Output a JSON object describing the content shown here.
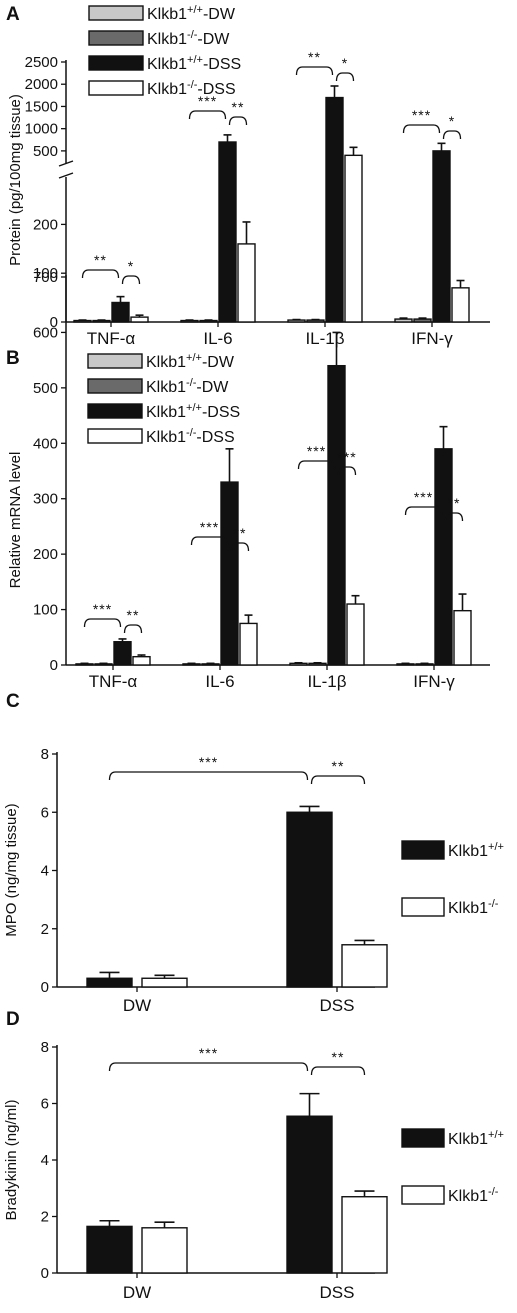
{
  "panels": {
    "A": {
      "letter": "A"
    },
    "B": {
      "letter": "B"
    },
    "C": {
      "letter": "C"
    },
    "D": {
      "letter": "D"
    }
  },
  "colors": {
    "Klkb1+/+-DW": "#c8c8c8",
    "Klkb1-/--DW": "#6a6a6a",
    "Klkb1+/+-DSS": "#111111",
    "Klkb1-/--DSS": "#ffffff"
  },
  "chart_data": [
    {
      "id": "A",
      "type": "bar",
      "ylabel": "Protein (pg/100mg tissue)",
      "categories": [
        "TNF-α",
        "IL-6",
        "IL-1β",
        "IFN-γ"
      ],
      "y_axis_break": true,
      "ylim_lower": [
        0,
        250
      ],
      "ylim_upper": [
        250,
        2500
      ],
      "yticks_lower": [
        0,
        100,
        200
      ],
      "yticks_upper": [
        500,
        1000,
        1500,
        2000,
        2500
      ],
      "legend": [
        {
          "text": "Klkb1",
          "sup": "+/+",
          "suffix": "-DW"
        },
        {
          "text": "Klkb1",
          "sup": "-/-",
          "suffix": "-DW"
        },
        {
          "text": "Klkb1",
          "sup": "+/+",
          "suffix": "-DSS"
        },
        {
          "text": "Klkb1",
          "sup": "-/-",
          "suffix": "-DSS"
        }
      ],
      "series": [
        {
          "name": "Klkb1+/+-DW",
          "values": [
            3,
            3,
            4,
            6
          ],
          "errors": [
            1,
            1,
            1,
            2
          ]
        },
        {
          "name": "Klkb1-/--DW",
          "values": [
            3,
            3,
            4,
            6
          ],
          "errors": [
            1,
            1,
            1,
            2
          ]
        },
        {
          "name": "Klkb1+/+-DSS",
          "values": [
            40,
            700,
            1700,
            500
          ],
          "errors": [
            12,
            160,
            260,
            170
          ]
        },
        {
          "name": "Klkb1-/--DSS",
          "values": [
            10,
            160,
            400,
            70
          ],
          "errors": [
            4,
            45,
            180,
            15
          ]
        }
      ],
      "significance": [
        {
          "label": "**",
          "from": [
            0,
            0
          ],
          "to": [
            0,
            2
          ]
        },
        {
          "label": "*",
          "from": [
            0,
            2
          ],
          "to": [
            0,
            3
          ]
        },
        {
          "label": "***",
          "from": [
            1,
            0
          ],
          "to": [
            1,
            2
          ]
        },
        {
          "label": "**",
          "from": [
            1,
            2
          ],
          "to": [
            1,
            3
          ]
        },
        {
          "label": "**",
          "from": [
            2,
            0
          ],
          "to": [
            2,
            2
          ]
        },
        {
          "label": "*",
          "from": [
            2,
            2
          ],
          "to": [
            2,
            3
          ]
        },
        {
          "label": "***",
          "from": [
            3,
            0
          ],
          "to": [
            3,
            2
          ]
        },
        {
          "label": "*",
          "from": [
            3,
            2
          ],
          "to": [
            3,
            3
          ]
        }
      ]
    },
    {
      "id": "B",
      "type": "bar",
      "ylabel": "Relative mRNA level",
      "categories": [
        "TNF-α",
        "IL-6",
        "IL-1β",
        "IFN-γ"
      ],
      "ylim": [
        0,
        700
      ],
      "yticks": [
        0,
        100,
        200,
        300,
        400,
        500,
        600,
        700
      ],
      "legend": [
        {
          "text": "Klkb1",
          "sup": "+/+",
          "suffix": "-DW"
        },
        {
          "text": "Klkb1",
          "sup": "-/-",
          "suffix": "-DW"
        },
        {
          "text": "Klkb1",
          "sup": "+/+",
          "suffix": "-DSS"
        },
        {
          "text": "Klkb1",
          "sup": "-/-",
          "suffix": "-DSS"
        }
      ],
      "series": [
        {
          "name": "Klkb1+/+-DW",
          "values": [
            2,
            2,
            3,
            2
          ],
          "errors": [
            1,
            1,
            1,
            1
          ]
        },
        {
          "name": "Klkb1-/--DW",
          "values": [
            2,
            2,
            3,
            2
          ],
          "errors": [
            1,
            1,
            1,
            1
          ]
        },
        {
          "name": "Klkb1+/+-DSS",
          "values": [
            42,
            330,
            540,
            390
          ],
          "errors": [
            5,
            60,
            60,
            40
          ]
        },
        {
          "name": "Klkb1-/--DSS",
          "values": [
            15,
            75,
            110,
            98
          ],
          "errors": [
            3,
            15,
            15,
            30
          ]
        }
      ],
      "significance": [
        {
          "label": "***",
          "from": [
            0,
            0
          ],
          "to": [
            0,
            2
          ]
        },
        {
          "label": "**",
          "from": [
            0,
            2
          ],
          "to": [
            0,
            3
          ]
        },
        {
          "label": "***",
          "from": [
            1,
            0
          ],
          "to": [
            1,
            2
          ]
        },
        {
          "label": "**",
          "from": [
            1,
            2
          ],
          "to": [
            1,
            3
          ]
        },
        {
          "label": "***",
          "from": [
            2,
            0
          ],
          "to": [
            2,
            2
          ]
        },
        {
          "label": "***",
          "from": [
            2,
            2
          ],
          "to": [
            2,
            3
          ]
        },
        {
          "label": "***",
          "from": [
            3,
            0
          ],
          "to": [
            3,
            2
          ]
        },
        {
          "label": "**",
          "from": [
            3,
            2
          ],
          "to": [
            3,
            3
          ]
        }
      ]
    },
    {
      "id": "C",
      "type": "bar",
      "ylabel": "MPO (ng/mg tissue)",
      "categories": [
        "DW",
        "DSS"
      ],
      "ylim": [
        0,
        8
      ],
      "yticks": [
        0,
        2,
        4,
        6,
        8
      ],
      "legend": [
        {
          "text": "Klkb1",
          "sup": "+/+",
          "suffix": ""
        },
        {
          "text": "Klkb1",
          "sup": "-/-",
          "suffix": ""
        }
      ],
      "series": [
        {
          "name": "Klkb1+/+",
          "values": [
            0.3,
            6.0
          ],
          "errors": [
            0.2,
            0.2
          ]
        },
        {
          "name": "Klkb1-/-",
          "values": [
            0.3,
            1.45
          ],
          "errors": [
            0.1,
            0.15
          ]
        }
      ],
      "significance": [
        {
          "label": "***",
          "from": [
            0,
            0
          ],
          "to": [
            1,
            0
          ]
        },
        {
          "label": "**",
          "from": [
            1,
            0
          ],
          "to": [
            1,
            1
          ]
        }
      ]
    },
    {
      "id": "D",
      "type": "bar",
      "ylabel": "Bradykinin (ng/ml)",
      "categories": [
        "DW",
        "DSS"
      ],
      "ylim": [
        0,
        8
      ],
      "yticks": [
        0,
        2,
        4,
        6,
        8
      ],
      "legend": [
        {
          "text": "Klkb1",
          "sup": "+/+",
          "suffix": ""
        },
        {
          "text": "Klkb1",
          "sup": "-/-",
          "suffix": ""
        }
      ],
      "series": [
        {
          "name": "Klkb1+/+",
          "values": [
            1.65,
            5.55
          ],
          "errors": [
            0.2,
            0.8
          ]
        },
        {
          "name": "Klkb1-/-",
          "values": [
            1.6,
            2.7
          ],
          "errors": [
            0.2,
            0.2
          ]
        }
      ],
      "significance": [
        {
          "label": "***",
          "from": [
            0,
            0
          ],
          "to": [
            1,
            0
          ]
        },
        {
          "label": "**",
          "from": [
            1,
            0
          ],
          "to": [
            1,
            1
          ]
        }
      ]
    }
  ]
}
